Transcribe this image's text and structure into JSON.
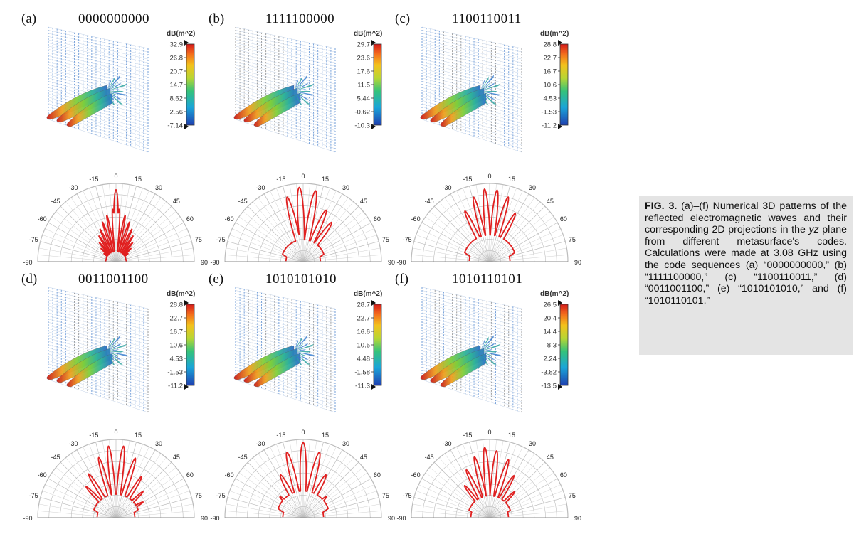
{
  "figure": {
    "panels": [
      {
        "label": "(a)",
        "code": "0000000000",
        "colorbar": {
          "unit": "dB(m^2)",
          "ticks": [
            "32.9",
            "26.8",
            "20.7",
            "14.7",
            "8.62",
            "2.56",
            "-7.14"
          ]
        }
      },
      {
        "label": "(b)",
        "code": "1111100000",
        "colorbar": {
          "unit": "dB(m^2)",
          "ticks": [
            "29.7",
            "23.6",
            "17.6",
            "11.5",
            "5.44",
            "-0.62",
            "-10.3"
          ]
        }
      },
      {
        "label": "(c)",
        "code": "1100110011",
        "colorbar": {
          "unit": "dB(m^2)",
          "ticks": [
            "28.8",
            "22.7",
            "16.7",
            "10.6",
            "4.53",
            "-1.53",
            "-11.2"
          ]
        }
      },
      {
        "label": "(d)",
        "code": "0011001100",
        "colorbar": {
          "unit": "dB(m^2)",
          "ticks": [
            "28.8",
            "22.7",
            "16.7",
            "10.6",
            "4.53",
            "-1.53",
            "-11.2"
          ]
        }
      },
      {
        "label": "(e)",
        "code": "1010101010",
        "colorbar": {
          "unit": "dB(m^2)",
          "ticks": [
            "28.7",
            "22.7",
            "16.6",
            "10.5",
            "4.48",
            "-1.58",
            "-11.3"
          ]
        }
      },
      {
        "label": "(f)",
        "code": "1010110101",
        "colorbar": {
          "unit": "dB(m^2)",
          "ticks": [
            "26.5",
            "20.4",
            "14.4",
            "8.3",
            "2.24",
            "-3.82",
            "-13.5"
          ]
        }
      }
    ],
    "polar_angle_labels": [
      "-90",
      "-75",
      "-60",
      "-45",
      "-30",
      "-15",
      "0",
      "15",
      "30",
      "45",
      "60",
      "75",
      "90"
    ],
    "colors": {
      "pattern_line": "#e02020",
      "grid": "#bdbdbd",
      "mesh_blue": "#5b8fd4",
      "mesh_gray": "#8a8a8a",
      "caption_bg": "#e4e4e4"
    }
  },
  "caption": {
    "label": "FIG. 3.",
    "text_1": " (a)–(f) Numerical 3D patterns of the reflected electromagnetic waves and their corresponding 2D projections in the ",
    "italic": "yz",
    "text_2": " plane from different metasurface's codes. Calculations were made at 3.08 GHz using the code sequences (a) “0000000000,” (b) “1111100000,” (c) “1100110011,” (d) “0011001100,” (e) “1010101010,” and (f) “1010110101.”"
  }
}
